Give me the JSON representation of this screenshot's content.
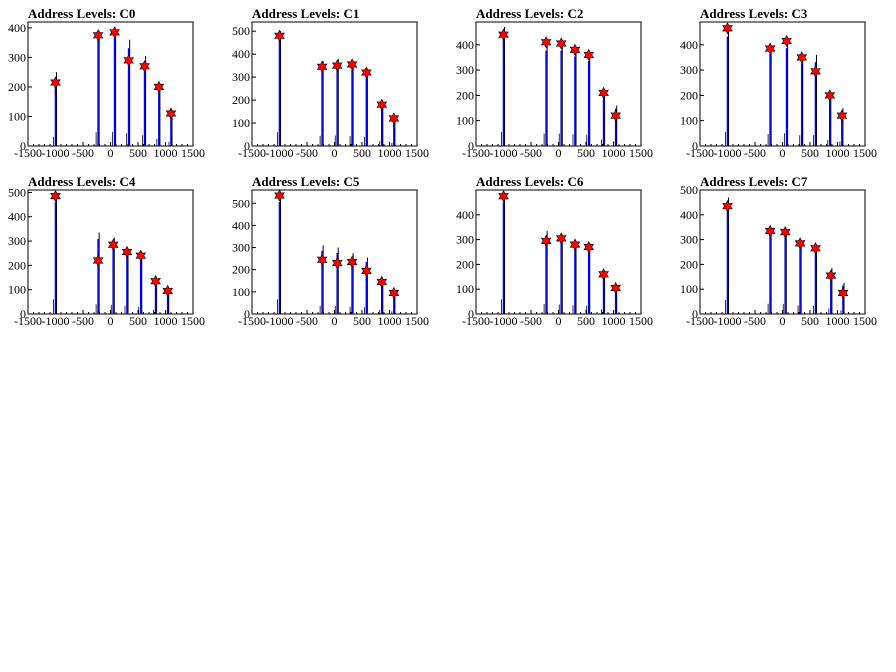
{
  "colors": {
    "spike": "#0000ff",
    "marker": "#ff0000",
    "marker_edge": "#000000",
    "axes": "#000000"
  },
  "chart_data": [
    {
      "type": "histogram",
      "title": "Address Levels: C0",
      "xlim": [
        -1500,
        1500
      ],
      "ylim": [
        0,
        420
      ],
      "xticks": [
        "-1500",
        "-1000",
        "-500",
        "0",
        "500",
        "1000",
        "1500"
      ],
      "yticks": [
        "0",
        "100",
        "200",
        "300",
        "400"
      ],
      "ytick_values": [
        0,
        100,
        200,
        300,
        400
      ],
      "peaks": [
        {
          "x": -1000,
          "y": 215
        },
        {
          "x": -225,
          "y": 375
        },
        {
          "x": 75,
          "y": 385
        },
        {
          "x": 330,
          "y": 290
        },
        {
          "x": 620,
          "y": 270
        },
        {
          "x": 880,
          "y": 200
        },
        {
          "x": 1100,
          "y": 110
        }
      ],
      "spikes": [
        {
          "x": -1000,
          "y": 250
        },
        {
          "x": -225,
          "y": 390
        },
        {
          "x": 75,
          "y": 400
        },
        {
          "x": 330,
          "y": 360
        },
        {
          "x": 620,
          "y": 305
        },
        {
          "x": 880,
          "y": 200
        },
        {
          "x": 1100,
          "y": 120
        }
      ]
    },
    {
      "type": "histogram",
      "title": "Address Levels: C1",
      "xlim": [
        -1500,
        1500
      ],
      "ylim": [
        0,
        540
      ],
      "xticks": [
        "-1500",
        "-1000",
        "-500",
        "0",
        "500",
        "1000",
        "1500"
      ],
      "yticks": [
        "0",
        "100",
        "200",
        "300",
        "400",
        "500"
      ],
      "ytick_values": [
        0,
        100,
        200,
        300,
        400,
        500
      ],
      "peaks": [
        {
          "x": -1000,
          "y": 480
        },
        {
          "x": -225,
          "y": 345
        },
        {
          "x": 50,
          "y": 350
        },
        {
          "x": 320,
          "y": 355
        },
        {
          "x": 580,
          "y": 320
        },
        {
          "x": 860,
          "y": 180
        },
        {
          "x": 1080,
          "y": 120
        }
      ],
      "spikes": [
        {
          "x": -1000,
          "y": 500
        },
        {
          "x": -225,
          "y": 370
        },
        {
          "x": 50,
          "y": 380
        },
        {
          "x": 320,
          "y": 360
        },
        {
          "x": 580,
          "y": 335
        },
        {
          "x": 860,
          "y": 180
        },
        {
          "x": 1080,
          "y": 120
        }
      ]
    },
    {
      "type": "histogram",
      "title": "Address Levels: C2",
      "xlim": [
        -1500,
        1500
      ],
      "ylim": [
        0,
        490
      ],
      "xticks": [
        "-1500",
        "-1000",
        "-500",
        "0",
        "500",
        "1000",
        "1500"
      ],
      "yticks": [
        "0",
        "100",
        "200",
        "300",
        "400"
      ],
      "ytick_values": [
        0,
        100,
        200,
        300,
        400
      ],
      "peaks": [
        {
          "x": -1000,
          "y": 440
        },
        {
          "x": -225,
          "y": 410
        },
        {
          "x": 50,
          "y": 405
        },
        {
          "x": 300,
          "y": 380
        },
        {
          "x": 550,
          "y": 360
        },
        {
          "x": 820,
          "y": 210
        },
        {
          "x": 1040,
          "y": 120
        }
      ],
      "spikes": [
        {
          "x": -1000,
          "y": 470
        },
        {
          "x": -225,
          "y": 410
        },
        {
          "x": 50,
          "y": 410
        },
        {
          "x": 300,
          "y": 385
        },
        {
          "x": 550,
          "y": 365
        },
        {
          "x": 820,
          "y": 210
        },
        {
          "x": 1040,
          "y": 160
        }
      ]
    },
    {
      "type": "histogram",
      "title": "Address Levels: C3",
      "xlim": [
        -1500,
        1500
      ],
      "ylim": [
        0,
        490
      ],
      "xticks": [
        "-1500",
        "-1000",
        "-500",
        "0",
        "500",
        "1000",
        "1500"
      ],
      "yticks": [
        "0",
        "100",
        "200",
        "300",
        "400"
      ],
      "ytick_values": [
        0,
        100,
        200,
        300,
        400
      ],
      "peaks": [
        {
          "x": -1000,
          "y": 465
        },
        {
          "x": -225,
          "y": 385
        },
        {
          "x": 75,
          "y": 415
        },
        {
          "x": 350,
          "y": 350
        },
        {
          "x": 600,
          "y": 295
        },
        {
          "x": 860,
          "y": 200
        },
        {
          "x": 1080,
          "y": 120
        }
      ],
      "spikes": [
        {
          "x": -1000,
          "y": 470
        },
        {
          "x": -225,
          "y": 395
        },
        {
          "x": 75,
          "y": 420
        },
        {
          "x": 350,
          "y": 355
        },
        {
          "x": 600,
          "y": 360
        },
        {
          "x": 860,
          "y": 200
        },
        {
          "x": 1080,
          "y": 150
        }
      ]
    },
    {
      "type": "histogram",
      "title": "Address Levels: C4",
      "xlim": [
        -1500,
        1500
      ],
      "ylim": [
        0,
        510
      ],
      "xticks": [
        "-1500",
        "-1000",
        "-500",
        "0",
        "500",
        "1000",
        "1500"
      ],
      "yticks": [
        "0",
        "100",
        "200",
        "300",
        "400",
        "500"
      ],
      "ytick_values": [
        0,
        100,
        200,
        300,
        400,
        500
      ],
      "peaks": [
        {
          "x": -1000,
          "y": 485
        },
        {
          "x": -225,
          "y": 220
        },
        {
          "x": 50,
          "y": 285
        },
        {
          "x": 300,
          "y": 255
        },
        {
          "x": 550,
          "y": 240
        },
        {
          "x": 820,
          "y": 135
        },
        {
          "x": 1040,
          "y": 95
        }
      ],
      "spikes": [
        {
          "x": -1000,
          "y": 500
        },
        {
          "x": -225,
          "y": 335
        },
        {
          "x": 50,
          "y": 315
        },
        {
          "x": 300,
          "y": 270
        },
        {
          "x": 550,
          "y": 245
        },
        {
          "x": 820,
          "y": 145
        },
        {
          "x": 1040,
          "y": 100
        }
      ]
    },
    {
      "type": "histogram",
      "title": "Address Levels: C5",
      "xlim": [
        -1500,
        1500
      ],
      "ylim": [
        0,
        560
      ],
      "xticks": [
        "-1500",
        "-1000",
        "-500",
        "0",
        "500",
        "1000",
        "1500"
      ],
      "yticks": [
        "0",
        "100",
        "200",
        "300",
        "400",
        "500"
      ],
      "ytick_values": [
        0,
        100,
        200,
        300,
        400,
        500
      ],
      "peaks": [
        {
          "x": -1000,
          "y": 535
        },
        {
          "x": -225,
          "y": 245
        },
        {
          "x": 50,
          "y": 230
        },
        {
          "x": 320,
          "y": 235
        },
        {
          "x": 580,
          "y": 195
        },
        {
          "x": 860,
          "y": 145
        },
        {
          "x": 1080,
          "y": 95
        }
      ],
      "spikes": [
        {
          "x": -1000,
          "y": 550
        },
        {
          "x": -225,
          "y": 310
        },
        {
          "x": 50,
          "y": 300
        },
        {
          "x": 320,
          "y": 275
        },
        {
          "x": 580,
          "y": 255
        },
        {
          "x": 860,
          "y": 150
        },
        {
          "x": 1080,
          "y": 100
        }
      ]
    },
    {
      "type": "histogram",
      "title": "Address Levels: C6",
      "xlim": [
        -1500,
        1500
      ],
      "ylim": [
        0,
        500
      ],
      "xticks": [
        "-1500",
        "-1000",
        "-500",
        "0",
        "500",
        "1000",
        "1500"
      ],
      "yticks": [
        "0",
        "100",
        "200",
        "300",
        "400"
      ],
      "ytick_values": [
        0,
        100,
        200,
        300,
        400
      ],
      "peaks": [
        {
          "x": -1000,
          "y": 475
        },
        {
          "x": -225,
          "y": 295
        },
        {
          "x": 50,
          "y": 305
        },
        {
          "x": 300,
          "y": 280
        },
        {
          "x": 550,
          "y": 270
        },
        {
          "x": 820,
          "y": 160
        },
        {
          "x": 1040,
          "y": 105
        }
      ],
      "spikes": [
        {
          "x": -1000,
          "y": 490
        },
        {
          "x": -225,
          "y": 335
        },
        {
          "x": 50,
          "y": 320
        },
        {
          "x": 300,
          "y": 290
        },
        {
          "x": 550,
          "y": 285
        },
        {
          "x": 820,
          "y": 165
        },
        {
          "x": 1040,
          "y": 110
        }
      ]
    },
    {
      "type": "histogram",
      "title": "Address Levels: C7",
      "xlim": [
        -1500,
        1500
      ],
      "ylim": [
        0,
        500
      ],
      "xticks": [
        "-1500",
        "-1000",
        "-500",
        "0",
        "500",
        "1000",
        "1500"
      ],
      "yticks": [
        "0",
        "100",
        "200",
        "300",
        "400",
        "500"
      ],
      "ytick_values": [
        0,
        100,
        200,
        300,
        400,
        500
      ],
      "peaks": [
        {
          "x": -1000,
          "y": 435
        },
        {
          "x": -225,
          "y": 335
        },
        {
          "x": 50,
          "y": 330
        },
        {
          "x": 320,
          "y": 285
        },
        {
          "x": 600,
          "y": 265
        },
        {
          "x": 880,
          "y": 155
        },
        {
          "x": 1100,
          "y": 85
        }
      ],
      "spikes": [
        {
          "x": -1000,
          "y": 470
        },
        {
          "x": -225,
          "y": 345
        },
        {
          "x": 50,
          "y": 340
        },
        {
          "x": 320,
          "y": 290
        },
        {
          "x": 600,
          "y": 280
        },
        {
          "x": 880,
          "y": 185
        },
        {
          "x": 1100,
          "y": 125
        }
      ]
    }
  ]
}
